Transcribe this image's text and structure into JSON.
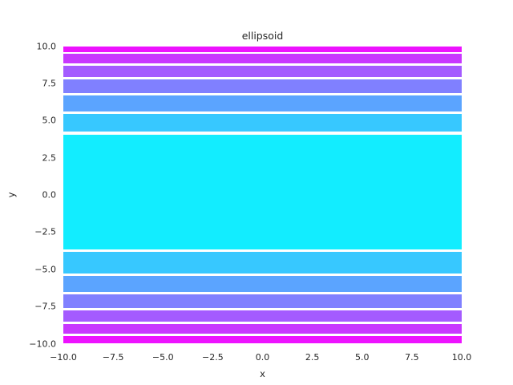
{
  "chart_data": {
    "type": "area",
    "subtype": "horizontal-contour-bands",
    "title": "ellipsoid",
    "xlabel": "x",
    "ylabel": "y",
    "xlim": [
      -10,
      10
    ],
    "ylim": [
      -10,
      10
    ],
    "grid": false,
    "legend": "none",
    "x_ticks": [
      -10.0,
      -7.5,
      -5.0,
      -2.5,
      0.0,
      2.5,
      5.0,
      7.5,
      10.0
    ],
    "y_ticks": [
      10.0,
      7.5,
      5.0,
      2.5,
      0.0,
      -2.5,
      -5.0,
      -7.5,
      -10.0
    ],
    "x_tick_labels": [
      "−10.0",
      "−7.5",
      "−5.0",
      "−2.5",
      "0.0",
      "2.5",
      "5.0",
      "7.5",
      "10.0"
    ],
    "y_tick_labels": [
      "10.0",
      "7.5",
      "5.0",
      "2.5",
      "0.0",
      "−2.5",
      "−5.0",
      "−7.5",
      "−10.0"
    ],
    "colormap": "cool",
    "palette": {
      "magenta": "#ED12FF",
      "violet": "#C837FF",
      "purple": "#A45BFF",
      "periwinkle": "#8080FF",
      "blue": "#5BA4FF",
      "sky": "#37C8FF",
      "cyan": "#12EDFF"
    },
    "text_color": "#262626",
    "background_color": "#FFFFFF",
    "bands": [
      {
        "x0": -10,
        "x1": 10,
        "y0": 9.62,
        "y1": 10.0,
        "color": "#ED12FF"
      },
      {
        "x0": -10,
        "x1": 10,
        "y0": 8.86,
        "y1": 9.48,
        "color": "#C837FF"
      },
      {
        "x0": -10,
        "x1": 10,
        "y0": 7.92,
        "y1": 8.7,
        "color": "#A45BFF"
      },
      {
        "x0": -10,
        "x1": 10,
        "y0": 6.84,
        "y1": 7.75,
        "color": "#8080FF"
      },
      {
        "x0": -10,
        "x1": 10,
        "y0": 5.62,
        "y1": 6.67,
        "color": "#5BA4FF"
      },
      {
        "x0": -10,
        "x1": 10,
        "y0": 4.24,
        "y1": 5.46,
        "color": "#37C8FF"
      },
      {
        "x0": -10,
        "x1": 10,
        "y0": -3.69,
        "y1": 4.07,
        "color": "#12EDFF"
      },
      {
        "x0": -10,
        "x1": 10,
        "y0": -5.29,
        "y1": -3.85,
        "color": "#37C8FF"
      },
      {
        "x0": -10,
        "x1": 10,
        "y0": -6.5,
        "y1": -5.45,
        "color": "#5BA4FF"
      },
      {
        "x0": -10,
        "x1": 10,
        "y0": -7.58,
        "y1": -6.66,
        "color": "#8080FF"
      },
      {
        "x0": -10,
        "x1": 10,
        "y0": -8.53,
        "y1": -7.74,
        "color": "#A45BFF"
      },
      {
        "x0": -10,
        "x1": 10,
        "y0": -9.32,
        "y1": -8.69,
        "color": "#C837FF"
      },
      {
        "x0": -10,
        "x1": 10,
        "y0": -10.0,
        "y1": -9.47,
        "color": "#ED12FF"
      }
    ]
  }
}
